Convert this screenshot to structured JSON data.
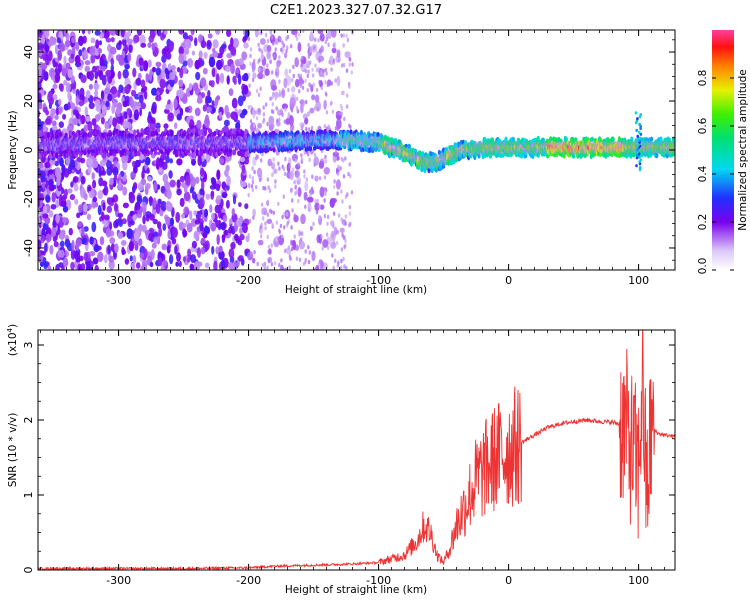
{
  "title": "C2E1.2023.327.07.32.G17",
  "chart_data": [
    {
      "type": "heatmap",
      "xlabel": "Height of straight line (km)",
      "ylabel": "Frequency (Hz)",
      "xlim": [
        -362,
        128
      ],
      "ylim": [
        -49,
        49
      ],
      "xticks": [
        -300,
        -200,
        -100,
        0,
        100
      ],
      "yticks": [
        -40,
        -20,
        0,
        20,
        40
      ],
      "xtick_labels": [
        "-300",
        "-200",
        "-100",
        "0",
        "100"
      ],
      "ytick_labels": [
        "-40",
        "-20",
        "0",
        "20",
        "40"
      ],
      "colorbar": {
        "label": "Normalized spectral amplitude",
        "range": [
          0,
          1
        ],
        "ticks": [
          0.0,
          0.2,
          0.4,
          0.6,
          0.8
        ],
        "tick_labels": [
          "0.0",
          "0.2",
          "0.4",
          "0.6",
          "0.8"
        ],
        "colormap": "white-purple-blue-cyan-green-yellow-red"
      },
      "ridge": {
        "x": [
          -362,
          -300,
          -250,
          -200,
          -150,
          -120,
          -100,
          -80,
          -65,
          -55,
          -45,
          -35,
          -20,
          0,
          30,
          60,
          90,
          100,
          110,
          128
        ],
        "y": [
          2,
          3,
          3,
          3,
          4,
          4,
          3,
          -1,
          -5,
          -5,
          -2,
          0,
          1,
          1,
          1,
          1,
          1,
          1,
          1,
          1
        ]
      }
    },
    {
      "type": "line",
      "xlabel": "Height of straight line (km)",
      "ylabel": "SNR (10 * v/v)",
      "yscale_label": "(x10",
      "yscale_exp": "4",
      "yscale_close": ")",
      "xlim": [
        -362,
        128
      ],
      "ylim": [
        0,
        3.2
      ],
      "xticks": [
        -300,
        -200,
        -100,
        0,
        100
      ],
      "yticks": [
        0,
        1,
        2,
        3
      ],
      "xtick_labels": [
        "-300",
        "-200",
        "-100",
        "0",
        "100"
      ],
      "ytick_labels": [
        "0",
        "1",
        "2",
        "3"
      ],
      "color": "#ee3333",
      "series": [
        {
          "x": [
            -362,
            -300,
            -250,
            -200,
            -180,
            -160,
            -140,
            -120,
            -100,
            -80,
            -70,
            -65,
            -60,
            -55,
            -50,
            -45,
            -40,
            -35,
            -30,
            -25,
            -20,
            -15,
            -10,
            -5,
            0,
            10,
            20,
            30,
            40,
            50,
            60,
            70,
            80,
            85,
            90,
            95,
            100,
            103,
            106,
            110,
            115,
            120,
            128
          ],
          "y": [
            0.02,
            0.02,
            0.02,
            0.03,
            0.05,
            0.06,
            0.07,
            0.08,
            0.1,
            0.2,
            0.4,
            0.6,
            0.5,
            0.2,
            0.1,
            0.3,
            0.6,
            0.8,
            1.0,
            1.2,
            1.3,
            1.4,
            1.5,
            1.55,
            1.6,
            1.7,
            1.8,
            1.9,
            1.95,
            1.98,
            2.0,
            1.98,
            1.97,
            1.95,
            1.9,
            1.6,
            1.3,
            2.6,
            1.0,
            1.9,
            1.82,
            1.8,
            1.78
          ]
        }
      ]
    }
  ]
}
